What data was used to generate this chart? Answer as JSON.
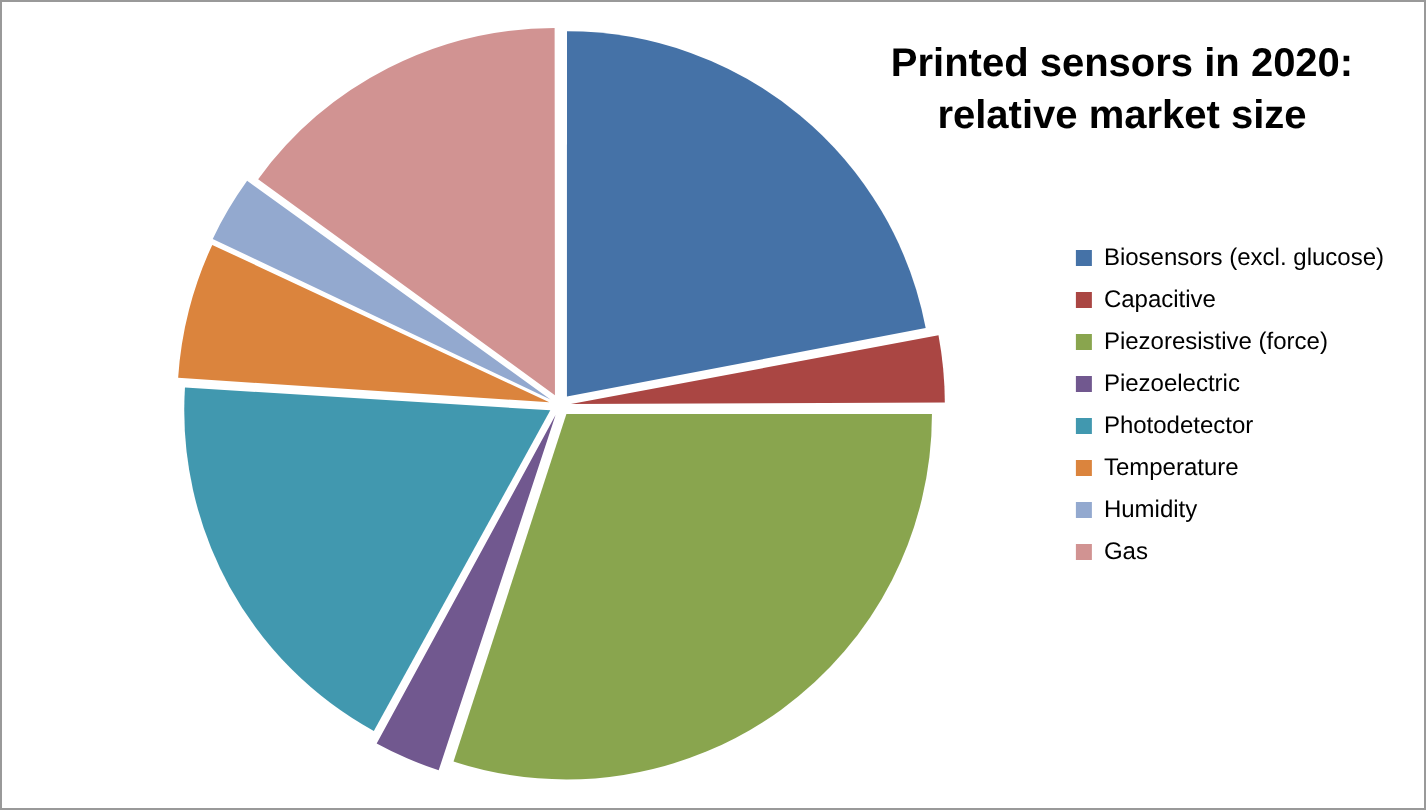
{
  "chart_data": {
    "type": "pie",
    "title": "Printed sensors in 2020:\nrelative market size",
    "categories": [
      "Biosensors (excl. glucose)",
      "Capacitive",
      "Piezoresistive (force)",
      "Piezoelectric",
      "Photodetector",
      "Temperature",
      "Humidity",
      "Gas"
    ],
    "values": [
      22,
      3,
      30,
      3,
      18,
      6,
      3,
      15
    ],
    "colors": [
      "#4572a7",
      "#aa4643",
      "#89a54e",
      "#71588f",
      "#4198af",
      "#db843d",
      "#93a9cf",
      "#d19392"
    ],
    "legend": "right"
  }
}
